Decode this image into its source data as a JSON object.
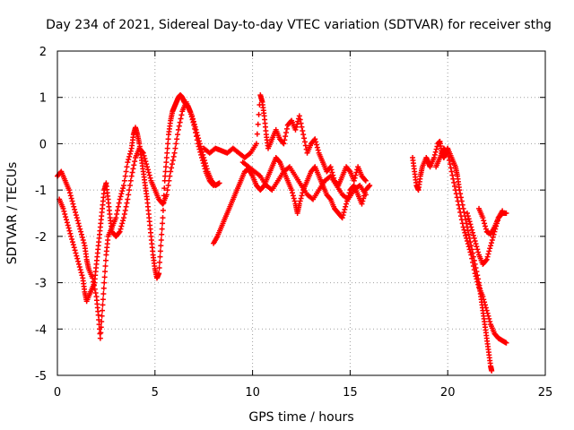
{
  "chart_data": {
    "type": "scatter",
    "title": "Day 234 of 2021, Sidereal Day-to-day VTEC variation (SDTVAR) for receiver sthg",
    "xlabel": "GPS time / hours",
    "ylabel": "SDTVAR / TECUs",
    "xlim": [
      0,
      25
    ],
    "ylim": [
      -5,
      2
    ],
    "xticks": [
      0,
      5,
      10,
      15,
      20,
      25
    ],
    "yticks": [
      -5,
      -4,
      -3,
      -2,
      -1,
      0,
      1,
      2
    ],
    "marker": "+",
    "color": "#ff0000",
    "grid": true,
    "series": [
      {
        "name": "SDTVAR",
        "segments": [
          [
            [
              0.0,
              -0.7
            ],
            [
              0.2,
              -0.6
            ],
            [
              0.4,
              -0.8
            ],
            [
              0.6,
              -1.0
            ],
            [
              0.8,
              -1.3
            ],
            [
              1.0,
              -1.6
            ],
            [
              1.2,
              -1.9
            ],
            [
              1.4,
              -2.2
            ],
            [
              1.5,
              -2.5
            ],
            [
              1.6,
              -2.7
            ],
            [
              1.8,
              -2.9
            ],
            [
              2.0,
              -3.3
            ],
            [
              2.1,
              -3.7
            ],
            [
              2.2,
              -4.2
            ],
            [
              2.3,
              -3.6
            ],
            [
              2.4,
              -3.0
            ],
            [
              2.5,
              -2.4
            ],
            [
              2.6,
              -2.0
            ],
            [
              2.8,
              -1.8
            ],
            [
              3.0,
              -1.6
            ],
            [
              3.2,
              -1.2
            ],
            [
              3.4,
              -0.9
            ],
            [
              3.6,
              -0.4
            ],
            [
              3.8,
              -0.1
            ],
            [
              3.9,
              0.2
            ],
            [
              4.0,
              0.35
            ],
            [
              4.1,
              0.2
            ],
            [
              4.2,
              0.0
            ],
            [
              4.3,
              -0.3
            ],
            [
              4.4,
              -0.6
            ],
            [
              4.5,
              -0.9
            ],
            [
              4.6,
              -1.2
            ],
            [
              4.7,
              -1.6
            ],
            [
              4.8,
              -2.0
            ],
            [
              4.9,
              -2.4
            ],
            [
              5.0,
              -2.7
            ],
            [
              5.1,
              -2.9
            ],
            [
              5.2,
              -2.8
            ],
            [
              5.3,
              -2.2
            ],
            [
              5.4,
              -1.6
            ],
            [
              5.5,
              -0.8
            ],
            [
              5.6,
              -0.3
            ],
            [
              5.7,
              0.2
            ],
            [
              5.8,
              0.5
            ],
            [
              5.9,
              0.7
            ],
            [
              6.0,
              0.8
            ],
            [
              6.1,
              0.9
            ],
            [
              6.2,
              1.0
            ],
            [
              6.3,
              1.05
            ],
            [
              6.4,
              1.0
            ],
            [
              6.5,
              0.9
            ],
            [
              6.7,
              0.8
            ],
            [
              6.9,
              0.6
            ],
            [
              7.1,
              0.3
            ],
            [
              7.3,
              0.0
            ],
            [
              7.5,
              -0.3
            ],
            [
              7.7,
              -0.6
            ],
            [
              7.9,
              -0.8
            ],
            [
              8.1,
              -0.9
            ],
            [
              8.3,
              -0.85
            ]
          ],
          [
            [
              0.1,
              -1.2
            ],
            [
              0.3,
              -1.4
            ],
            [
              0.5,
              -1.7
            ],
            [
              0.7,
              -2.0
            ],
            [
              0.9,
              -2.3
            ],
            [
              1.1,
              -2.6
            ],
            [
              1.3,
              -2.9
            ],
            [
              1.4,
              -3.2
            ],
            [
              1.5,
              -3.4
            ],
            [
              1.7,
              -3.2
            ],
            [
              1.9,
              -3.0
            ],
            [
              2.0,
              -2.6
            ],
            [
              2.1,
              -2.2
            ],
            [
              2.2,
              -1.8
            ],
            [
              2.3,
              -1.4
            ],
            [
              2.4,
              -1.0
            ],
            [
              2.5,
              -0.85
            ],
            [
              2.6,
              -1.2
            ],
            [
              2.7,
              -1.6
            ],
            [
              2.8,
              -1.9
            ],
            [
              3.0,
              -2.0
            ],
            [
              3.2,
              -1.9
            ],
            [
              3.4,
              -1.6
            ],
            [
              3.6,
              -1.2
            ],
            [
              3.8,
              -0.7
            ],
            [
              4.0,
              -0.3
            ],
            [
              4.2,
              -0.1
            ],
            [
              4.4,
              -0.2
            ],
            [
              4.6,
              -0.5
            ],
            [
              4.8,
              -0.8
            ],
            [
              5.0,
              -1.0
            ],
            [
              5.2,
              -1.2
            ],
            [
              5.4,
              -1.3
            ],
            [
              5.6,
              -1.1
            ],
            [
              5.8,
              -0.6
            ],
            [
              6.0,
              -0.2
            ],
            [
              6.2,
              0.3
            ],
            [
              6.4,
              0.7
            ],
            [
              6.6,
              0.9
            ],
            [
              6.8,
              0.7
            ],
            [
              7.0,
              0.4
            ],
            [
              7.2,
              0.0
            ],
            [
              7.4,
              -0.3
            ],
            [
              7.6,
              -0.6
            ],
            [
              7.8,
              -0.8
            ],
            [
              8.0,
              -0.9
            ]
          ],
          [
            [
              8.0,
              -2.15
            ],
            [
              8.2,
              -2.0
            ],
            [
              8.4,
              -1.8
            ],
            [
              8.6,
              -1.6
            ],
            [
              8.8,
              -1.4
            ],
            [
              9.0,
              -1.2
            ],
            [
              9.2,
              -1.0
            ],
            [
              9.4,
              -0.8
            ],
            [
              9.6,
              -0.6
            ],
            [
              9.8,
              -0.55
            ],
            [
              10.0,
              -0.7
            ],
            [
              10.2,
              -0.9
            ],
            [
              10.4,
              -1.0
            ],
            [
              10.6,
              -0.9
            ],
            [
              10.8,
              -0.7
            ],
            [
              11.0,
              -0.5
            ],
            [
              11.2,
              -0.3
            ],
            [
              11.4,
              -0.4
            ],
            [
              11.6,
              -0.6
            ],
            [
              11.8,
              -0.8
            ],
            [
              12.0,
              -1.0
            ],
            [
              12.2,
              -1.3
            ],
            [
              12.3,
              -1.5
            ],
            [
              12.4,
              -1.3
            ],
            [
              12.6,
              -1.0
            ],
            [
              12.8,
              -0.8
            ],
            [
              13.0,
              -0.6
            ],
            [
              13.2,
              -0.5
            ],
            [
              13.4,
              -0.7
            ],
            [
              13.6,
              -0.9
            ],
            [
              13.8,
              -1.1
            ],
            [
              14.0,
              -1.2
            ],
            [
              14.2,
              -1.4
            ],
            [
              14.4,
              -1.5
            ],
            [
              14.6,
              -1.6
            ],
            [
              14.8,
              -1.3
            ],
            [
              15.0,
              -1.0
            ],
            [
              15.2,
              -0.9
            ],
            [
              15.4,
              -1.1
            ],
            [
              15.6,
              -1.3
            ],
            [
              15.8,
              -1.0
            ],
            [
              16.0,
              -0.9
            ]
          ],
          [
            [
              7.5,
              -0.1
            ],
            [
              7.8,
              -0.2
            ],
            [
              8.1,
              -0.1
            ],
            [
              8.4,
              -0.15
            ],
            [
              8.7,
              -0.2
            ],
            [
              9.0,
              -0.1
            ],
            [
              9.3,
              -0.2
            ],
            [
              9.6,
              -0.3
            ],
            [
              9.9,
              -0.2
            ],
            [
              10.2,
              0.0
            ],
            [
              10.4,
              1.05
            ],
            [
              10.5,
              0.9
            ],
            [
              10.6,
              0.6
            ],
            [
              10.7,
              0.2
            ],
            [
              10.8,
              -0.1
            ],
            [
              11.0,
              0.1
            ],
            [
              11.2,
              0.3
            ],
            [
              11.4,
              0.1
            ],
            [
              11.6,
              0.0
            ],
            [
              11.8,
              0.4
            ],
            [
              12.0,
              0.5
            ],
            [
              12.2,
              0.3
            ],
            [
              12.4,
              0.6
            ],
            [
              12.6,
              0.2
            ],
            [
              12.8,
              -0.2
            ],
            [
              13.0,
              0.0
            ],
            [
              13.2,
              0.1
            ],
            [
              13.4,
              -0.2
            ],
            [
              13.6,
              -0.4
            ],
            [
              13.8,
              -0.6
            ],
            [
              14.0,
              -0.5
            ],
            [
              14.2,
              -0.8
            ],
            [
              14.4,
              -0.9
            ],
            [
              14.6,
              -0.7
            ],
            [
              14.8,
              -0.5
            ],
            [
              15.0,
              -0.6
            ],
            [
              15.2,
              -0.8
            ],
            [
              15.4,
              -0.5
            ],
            [
              15.6,
              -0.7
            ],
            [
              15.8,
              -0.8
            ]
          ],
          [
            [
              9.5,
              -0.4
            ],
            [
              9.8,
              -0.5
            ],
            [
              10.1,
              -0.6
            ],
            [
              10.4,
              -0.7
            ],
            [
              10.7,
              -0.9
            ],
            [
              11.0,
              -1.0
            ],
            [
              11.3,
              -0.8
            ],
            [
              11.6,
              -0.6
            ],
            [
              11.9,
              -0.5
            ],
            [
              12.2,
              -0.7
            ],
            [
              12.5,
              -0.9
            ],
            [
              12.8,
              -1.1
            ],
            [
              13.1,
              -1.2
            ],
            [
              13.4,
              -1.0
            ],
            [
              13.7,
              -0.8
            ],
            [
              14.0,
              -0.7
            ],
            [
              14.3,
              -0.9
            ],
            [
              14.6,
              -1.1
            ],
            [
              14.9,
              -1.2
            ],
            [
              15.2,
              -1.0
            ],
            [
              15.5,
              -0.9
            ],
            [
              15.8,
              -1.1
            ]
          ],
          [
            [
              18.2,
              -0.3
            ],
            [
              18.3,
              -0.6
            ],
            [
              18.4,
              -0.9
            ],
            [
              18.5,
              -1.0
            ],
            [
              18.6,
              -0.7
            ],
            [
              18.7,
              -0.5
            ],
            [
              18.9,
              -0.3
            ],
            [
              19.0,
              -0.4
            ],
            [
              19.1,
              -0.5
            ],
            [
              19.3,
              -0.3
            ],
            [
              19.5,
              0.0
            ],
            [
              19.6,
              0.05
            ],
            [
              19.7,
              -0.2
            ],
            [
              19.8,
              -0.3
            ],
            [
              19.9,
              -0.2
            ],
            [
              20.0,
              -0.1
            ],
            [
              20.2,
              -0.3
            ],
            [
              20.4,
              -0.5
            ],
            [
              20.5,
              -0.7
            ],
            [
              20.6,
              -1.0
            ],
            [
              20.8,
              -1.4
            ],
            [
              21.0,
              -1.8
            ],
            [
              21.2,
              -2.2
            ],
            [
              21.4,
              -2.6
            ],
            [
              21.6,
              -3.0
            ],
            [
              21.7,
              -3.3
            ],
            [
              21.8,
              -3.6
            ],
            [
              21.9,
              -3.9
            ],
            [
              22.0,
              -4.2
            ],
            [
              22.1,
              -4.5
            ],
            [
              22.2,
              -4.8
            ],
            [
              22.25,
              -4.9
            ]
          ],
          [
            [
              19.4,
              -0.5
            ],
            [
              19.6,
              -0.3
            ],
            [
              19.8,
              -0.1
            ],
            [
              20.0,
              -0.2
            ],
            [
              20.2,
              -0.6
            ],
            [
              20.4,
              -1.0
            ],
            [
              20.6,
              -1.4
            ],
            [
              20.8,
              -1.8
            ],
            [
              21.0,
              -2.1
            ],
            [
              21.2,
              -2.4
            ],
            [
              21.4,
              -2.8
            ],
            [
              21.6,
              -3.1
            ],
            [
              21.8,
              -3.3
            ],
            [
              22.0,
              -3.6
            ],
            [
              22.2,
              -3.9
            ],
            [
              22.4,
              -4.1
            ],
            [
              22.6,
              -4.2
            ],
            [
              22.8,
              -4.25
            ],
            [
              23.0,
              -4.3
            ]
          ],
          [
            [
              21.0,
              -1.5
            ],
            [
              21.2,
              -1.8
            ],
            [
              21.4,
              -2.1
            ],
            [
              21.6,
              -2.4
            ],
            [
              21.8,
              -2.6
            ],
            [
              22.0,
              -2.5
            ],
            [
              22.2,
              -2.2
            ],
            [
              22.4,
              -1.9
            ],
            [
              22.6,
              -1.6
            ],
            [
              22.8,
              -1.5
            ],
            [
              23.0,
              -1.5
            ]
          ],
          [
            [
              21.6,
              -1.4
            ],
            [
              21.8,
              -1.6
            ],
            [
              22.0,
              -1.9
            ],
            [
              22.2,
              -1.95
            ],
            [
              22.4,
              -1.8
            ],
            [
              22.6,
              -1.6
            ],
            [
              22.8,
              -1.45
            ]
          ]
        ]
      }
    ]
  }
}
